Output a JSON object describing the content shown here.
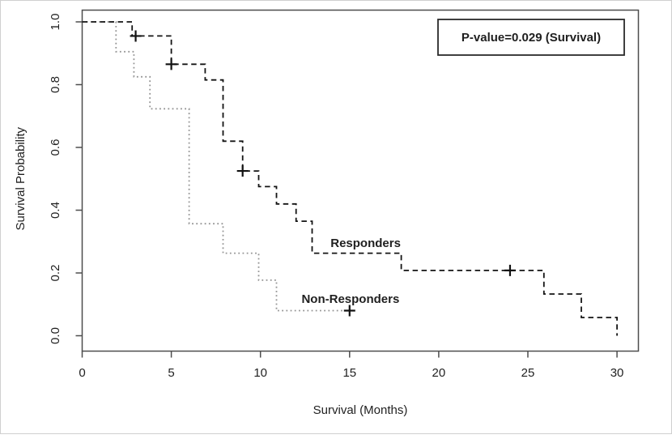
{
  "figure": {
    "background": "#ffffff",
    "frame_color": "#cfcfcf"
  },
  "chart_data": {
    "type": "line",
    "subtype": "kaplan-meier-step",
    "title": "",
    "xlabel": "Survival (Months)",
    "ylabel": "Survival Probability",
    "xlim": [
      0,
      31.2
    ],
    "ylim": [
      -0.05,
      1.04
    ],
    "grid": "off",
    "legend_position": "inline-labels",
    "x_ticks": [
      0,
      5,
      10,
      15,
      20,
      25,
      30
    ],
    "y_ticks": [
      "0.0",
      "0.2",
      "0.4",
      "0.6",
      "0.8",
      "1.0"
    ],
    "y_tick_values": [
      0.0,
      0.2,
      0.4,
      0.6,
      0.8,
      1.0
    ],
    "axis_color": "#4d4d4d",
    "censor_color": "#111111",
    "annotation": {
      "text": "P-value=0.029 (Survival)",
      "boxed": true,
      "box_color": "#2a2a2a"
    },
    "series": [
      {
        "name": "Non-Responders",
        "label": "Non-Responders",
        "style": "dotted",
        "color": "#949494",
        "label_t": 15.05,
        "label_s": 0.118,
        "steps": [
          [
            0,
            1.0
          ],
          [
            1.9,
            0.905
          ],
          [
            2.9,
            0.825
          ],
          [
            3.8,
            0.723
          ],
          [
            6,
            0.357
          ],
          [
            7.9,
            0.263
          ],
          [
            9.9,
            0.177
          ],
          [
            10.9,
            0.08
          ]
        ],
        "end_t": 15.3,
        "censors": [
          [
            15,
            0.08
          ]
        ]
      },
      {
        "name": "Responders",
        "label": "Responders",
        "style": "dashed",
        "color": "#141414",
        "label_t": 15.9,
        "label_s": 0.295,
        "steps": [
          [
            0,
            1.0
          ],
          [
            2.8,
            0.955
          ],
          [
            5,
            0.865
          ],
          [
            6.9,
            0.815
          ],
          [
            7.9,
            0.62
          ],
          [
            9,
            0.525
          ],
          [
            9.9,
            0.475
          ],
          [
            10.9,
            0.42
          ],
          [
            12,
            0.365
          ],
          [
            12.9,
            0.263
          ],
          [
            17.9,
            0.208
          ],
          [
            25.9,
            0.133
          ],
          [
            28,
            0.058
          ],
          [
            30,
            0.0
          ]
        ],
        "end_t": 30,
        "censors": [
          [
            3,
            0.955
          ],
          [
            5,
            0.865
          ],
          [
            9,
            0.525
          ],
          [
            24,
            0.208
          ]
        ]
      }
    ]
  }
}
